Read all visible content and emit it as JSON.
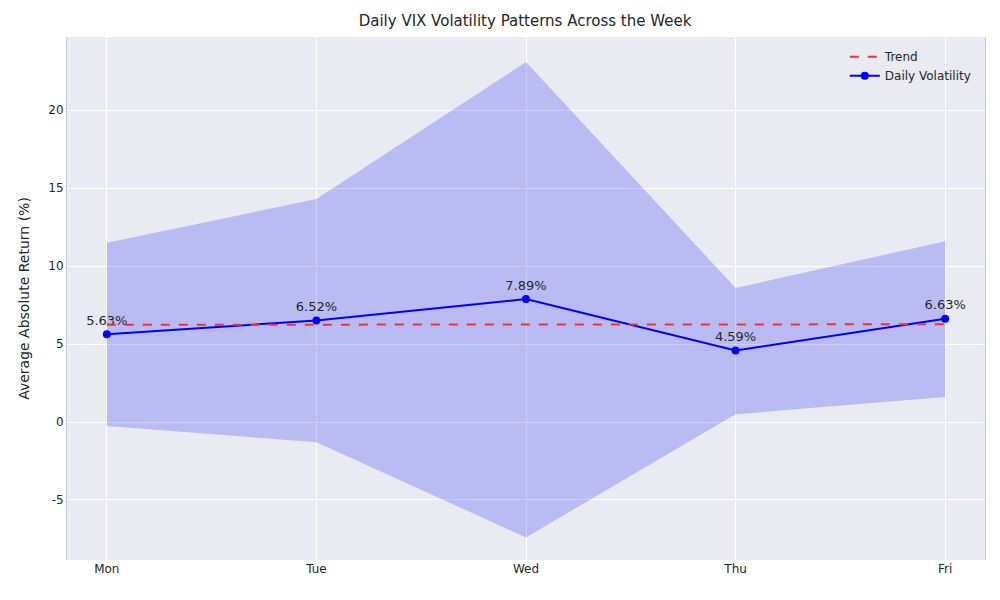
{
  "chart_data": {
    "type": "line",
    "title": "Daily VIX Volatility Patterns Across the Week",
    "y_label": "Average Absolute Return (%)",
    "categories": [
      "Mon",
      "Tue",
      "Wed",
      "Thu",
      "Fri"
    ],
    "series": [
      {
        "name": "Daily Volatility",
        "color": "#0000ff",
        "marker": "circle",
        "line_style": "solid",
        "values": [
          5.63,
          6.52,
          7.89,
          4.59,
          6.63
        ],
        "value_labels": [
          "5.63%",
          "6.52%",
          "7.89%",
          "4.59%",
          "6.63%"
        ],
        "data_labels": true,
        "lower": [
          -0.25,
          -1.3,
          -7.4,
          0.5,
          1.6
        ],
        "upper": [
          11.5,
          14.3,
          23.1,
          8.6,
          11.6
        ]
      },
      {
        "name": "Trend",
        "color": "#f03232",
        "line_style": "dashed",
        "values": [
          6.24,
          6.25,
          6.25,
          6.26,
          6.27
        ]
      }
    ],
    "ylim": [
      -8.85,
      24.7
    ],
    "yticks": [
      -5,
      0,
      5,
      10,
      15,
      20
    ],
    "grid": true,
    "legend": "upper right"
  }
}
